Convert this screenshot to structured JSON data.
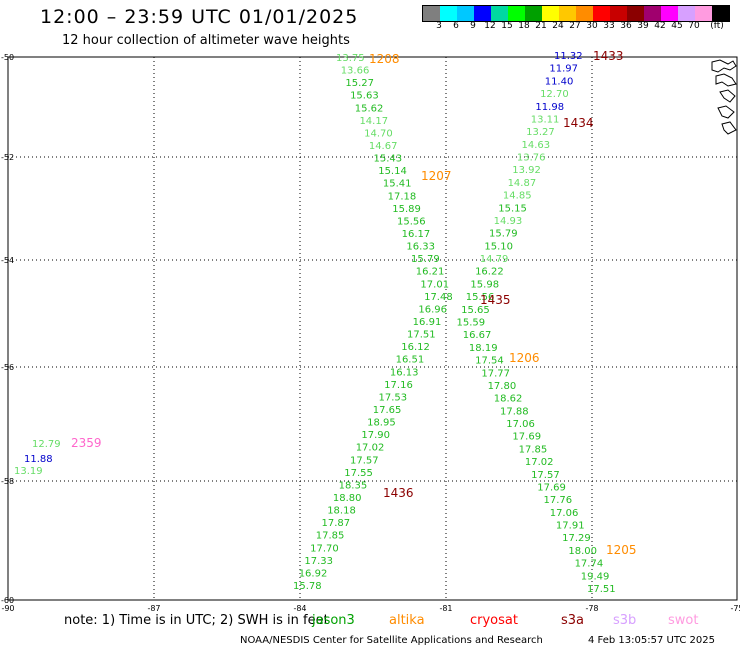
{
  "header": {
    "title": "12:00 – 23:59 UTC 01/01/2025",
    "subtitle": "12 hour collection of altimeter wave heights"
  },
  "colorbar": {
    "colors": [
      "#7f7f7f",
      "#00ffff",
      "#00c8ff",
      "#0000ff",
      "#00d8a0",
      "#00ff00",
      "#00a000",
      "#ffff00",
      "#ffc800",
      "#ff8c00",
      "#ff0000",
      "#c80000",
      "#8b0000",
      "#a0006e",
      "#ff00ff",
      "#d7a0ff",
      "#ff9be0",
      "#000000"
    ],
    "labels": [
      "3",
      "6",
      "9",
      "12",
      "15",
      "18",
      "21",
      "24",
      "27",
      "30",
      "33",
      "36",
      "39",
      "42",
      "45",
      "70",
      "(ft)"
    ]
  },
  "axes": {
    "lat_labels": [
      "-50",
      "-52",
      "-54",
      "-56",
      "-58",
      "-60"
    ],
    "lon_labels": [
      "-90",
      "-87",
      "-84",
      "-81",
      "-78",
      "-75"
    ]
  },
  "passes": [
    {
      "label": "1208",
      "color": "#ff8c00"
    },
    {
      "label": "1207",
      "color": "#ff8c00"
    },
    {
      "label": "1206",
      "color": "#ff8c00"
    },
    {
      "label": "1205",
      "color": "#ff8c00"
    },
    {
      "label": "1433",
      "color": "#8b0000"
    },
    {
      "label": "1434",
      "color": "#8b0000"
    },
    {
      "label": "1435",
      "color": "#8b0000"
    },
    {
      "label": "1436",
      "color": "#8b0000"
    },
    {
      "label": "2359",
      "color": "#ff66cc"
    }
  ],
  "track_a": [
    [
      "13.75",
      "#66dd66"
    ],
    [
      "13.66",
      "#66dd66"
    ],
    [
      "15.27",
      "#22bb22"
    ],
    [
      "15.63",
      "#22bb22"
    ],
    [
      "15.62",
      "#22bb22"
    ],
    [
      "14.17",
      "#66dd66"
    ],
    [
      "14.70",
      "#66dd66"
    ],
    [
      "14.67",
      "#66dd66"
    ],
    [
      "15.43",
      "#22bb22"
    ],
    [
      "15.14",
      "#22bb22"
    ],
    [
      "15.41",
      "#22bb22"
    ],
    [
      "17.18",
      "#22bb22"
    ],
    [
      "15.89",
      "#22bb22"
    ],
    [
      "15.56",
      "#22bb22"
    ],
    [
      "16.17",
      "#22bb22"
    ],
    [
      "16.33",
      "#22bb22"
    ],
    [
      "15.79",
      "#22bb22"
    ],
    [
      "16.21",
      "#22bb22"
    ],
    [
      "17.01",
      "#22bb22"
    ],
    [
      "17.48",
      "#22bb22"
    ],
    [
      "16.96",
      "#22bb22"
    ],
    [
      "16.91",
      "#22bb22"
    ],
    [
      "17.51",
      "#22bb22"
    ],
    [
      "16.12",
      "#22bb22"
    ],
    [
      "16.51",
      "#22bb22"
    ],
    [
      "16.13",
      "#22bb22"
    ],
    [
      "17.16",
      "#22bb22"
    ],
    [
      "17.53",
      "#22bb22"
    ],
    [
      "17.65",
      "#22bb22"
    ],
    [
      "18.95",
      "#22bb22"
    ],
    [
      "17.90",
      "#22bb22"
    ],
    [
      "17.02",
      "#22bb22"
    ],
    [
      "17.57",
      "#22bb22"
    ],
    [
      "17.55",
      "#22bb22"
    ],
    [
      "18.35",
      "#22bb22"
    ],
    [
      "18.80",
      "#22bb22"
    ],
    [
      "18.18",
      "#22bb22"
    ],
    [
      "17.87",
      "#22bb22"
    ],
    [
      "17.85",
      "#22bb22"
    ],
    [
      "17.70",
      "#22bb22"
    ],
    [
      "17.33",
      "#22bb22"
    ],
    [
      "16.92",
      "#22bb22"
    ],
    [
      "15.78",
      "#22bb22"
    ]
  ],
  "track_b": [
    [
      "11.32",
      "#0000cc"
    ],
    [
      "11.97",
      "#0000cc"
    ],
    [
      "11.40",
      "#0000cc"
    ],
    [
      "12.70",
      "#66dd66"
    ],
    [
      "11.98",
      "#0000cc"
    ],
    [
      "13.11",
      "#66dd66"
    ],
    [
      "13.27",
      "#66dd66"
    ],
    [
      "14.63",
      "#66dd66"
    ],
    [
      "13.76",
      "#66dd66"
    ],
    [
      "13.92",
      "#66dd66"
    ],
    [
      "14.87",
      "#66dd66"
    ],
    [
      "14.85",
      "#66dd66"
    ],
    [
      "15.15",
      "#22bb22"
    ],
    [
      "14.93",
      "#66dd66"
    ],
    [
      "15.79",
      "#22bb22"
    ],
    [
      "15.10",
      "#22bb22"
    ],
    [
      "14.79",
      "#66dd66"
    ],
    [
      "16.22",
      "#22bb22"
    ],
    [
      "15.98",
      "#22bb22"
    ],
    [
      "15.56",
      "#22bb22"
    ],
    [
      "15.65",
      "#22bb22"
    ],
    [
      "15.59",
      "#22bb22"
    ],
    [
      "16.67",
      "#22bb22"
    ],
    [
      "18.19",
      "#22bb22"
    ],
    [
      "17.54",
      "#22bb22"
    ],
    [
      "17.77",
      "#22bb22"
    ],
    [
      "17.80",
      "#22bb22"
    ],
    [
      "18.62",
      "#22bb22"
    ],
    [
      "17.88",
      "#22bb22"
    ],
    [
      "17.06",
      "#22bb22"
    ],
    [
      "17.69",
      "#22bb22"
    ],
    [
      "17.85",
      "#22bb22"
    ],
    [
      "17.02",
      "#22bb22"
    ],
    [
      "17.57",
      "#22bb22"
    ],
    [
      "17.69",
      "#22bb22"
    ],
    [
      "17.76",
      "#22bb22"
    ],
    [
      "17.06",
      "#22bb22"
    ],
    [
      "17.91",
      "#22bb22"
    ],
    [
      "17.29",
      "#22bb22"
    ],
    [
      "18.00",
      "#22bb22"
    ],
    [
      "17.74",
      "#22bb22"
    ],
    [
      "19.49",
      "#22bb22"
    ],
    [
      "17.51",
      "#22bb22"
    ]
  ],
  "track_c": [
    [
      "12.79",
      "#66dd66"
    ],
    [
      "11.88",
      "#0000cc"
    ],
    [
      "13.19",
      "#66dd66"
    ]
  ],
  "footer": {
    "note": "note:  1) Time is in UTC; 2) SWH is in feet",
    "legend": [
      {
        "label": "jason3",
        "color": "#00a000"
      },
      {
        "label": "altika",
        "color": "#ff8c00"
      },
      {
        "label": "cryosat",
        "color": "#ff0000"
      },
      {
        "label": "s3a",
        "color": "#8b0000"
      },
      {
        "label": "s3b",
        "color": "#d7a0ff"
      },
      {
        "label": "swot",
        "color": "#ff9be0"
      }
    ],
    "credit": "NOAA/NESDIS Center for Satellite Applications and Research",
    "timestamp": "4 Feb 13:05:57 UTC 2025"
  }
}
